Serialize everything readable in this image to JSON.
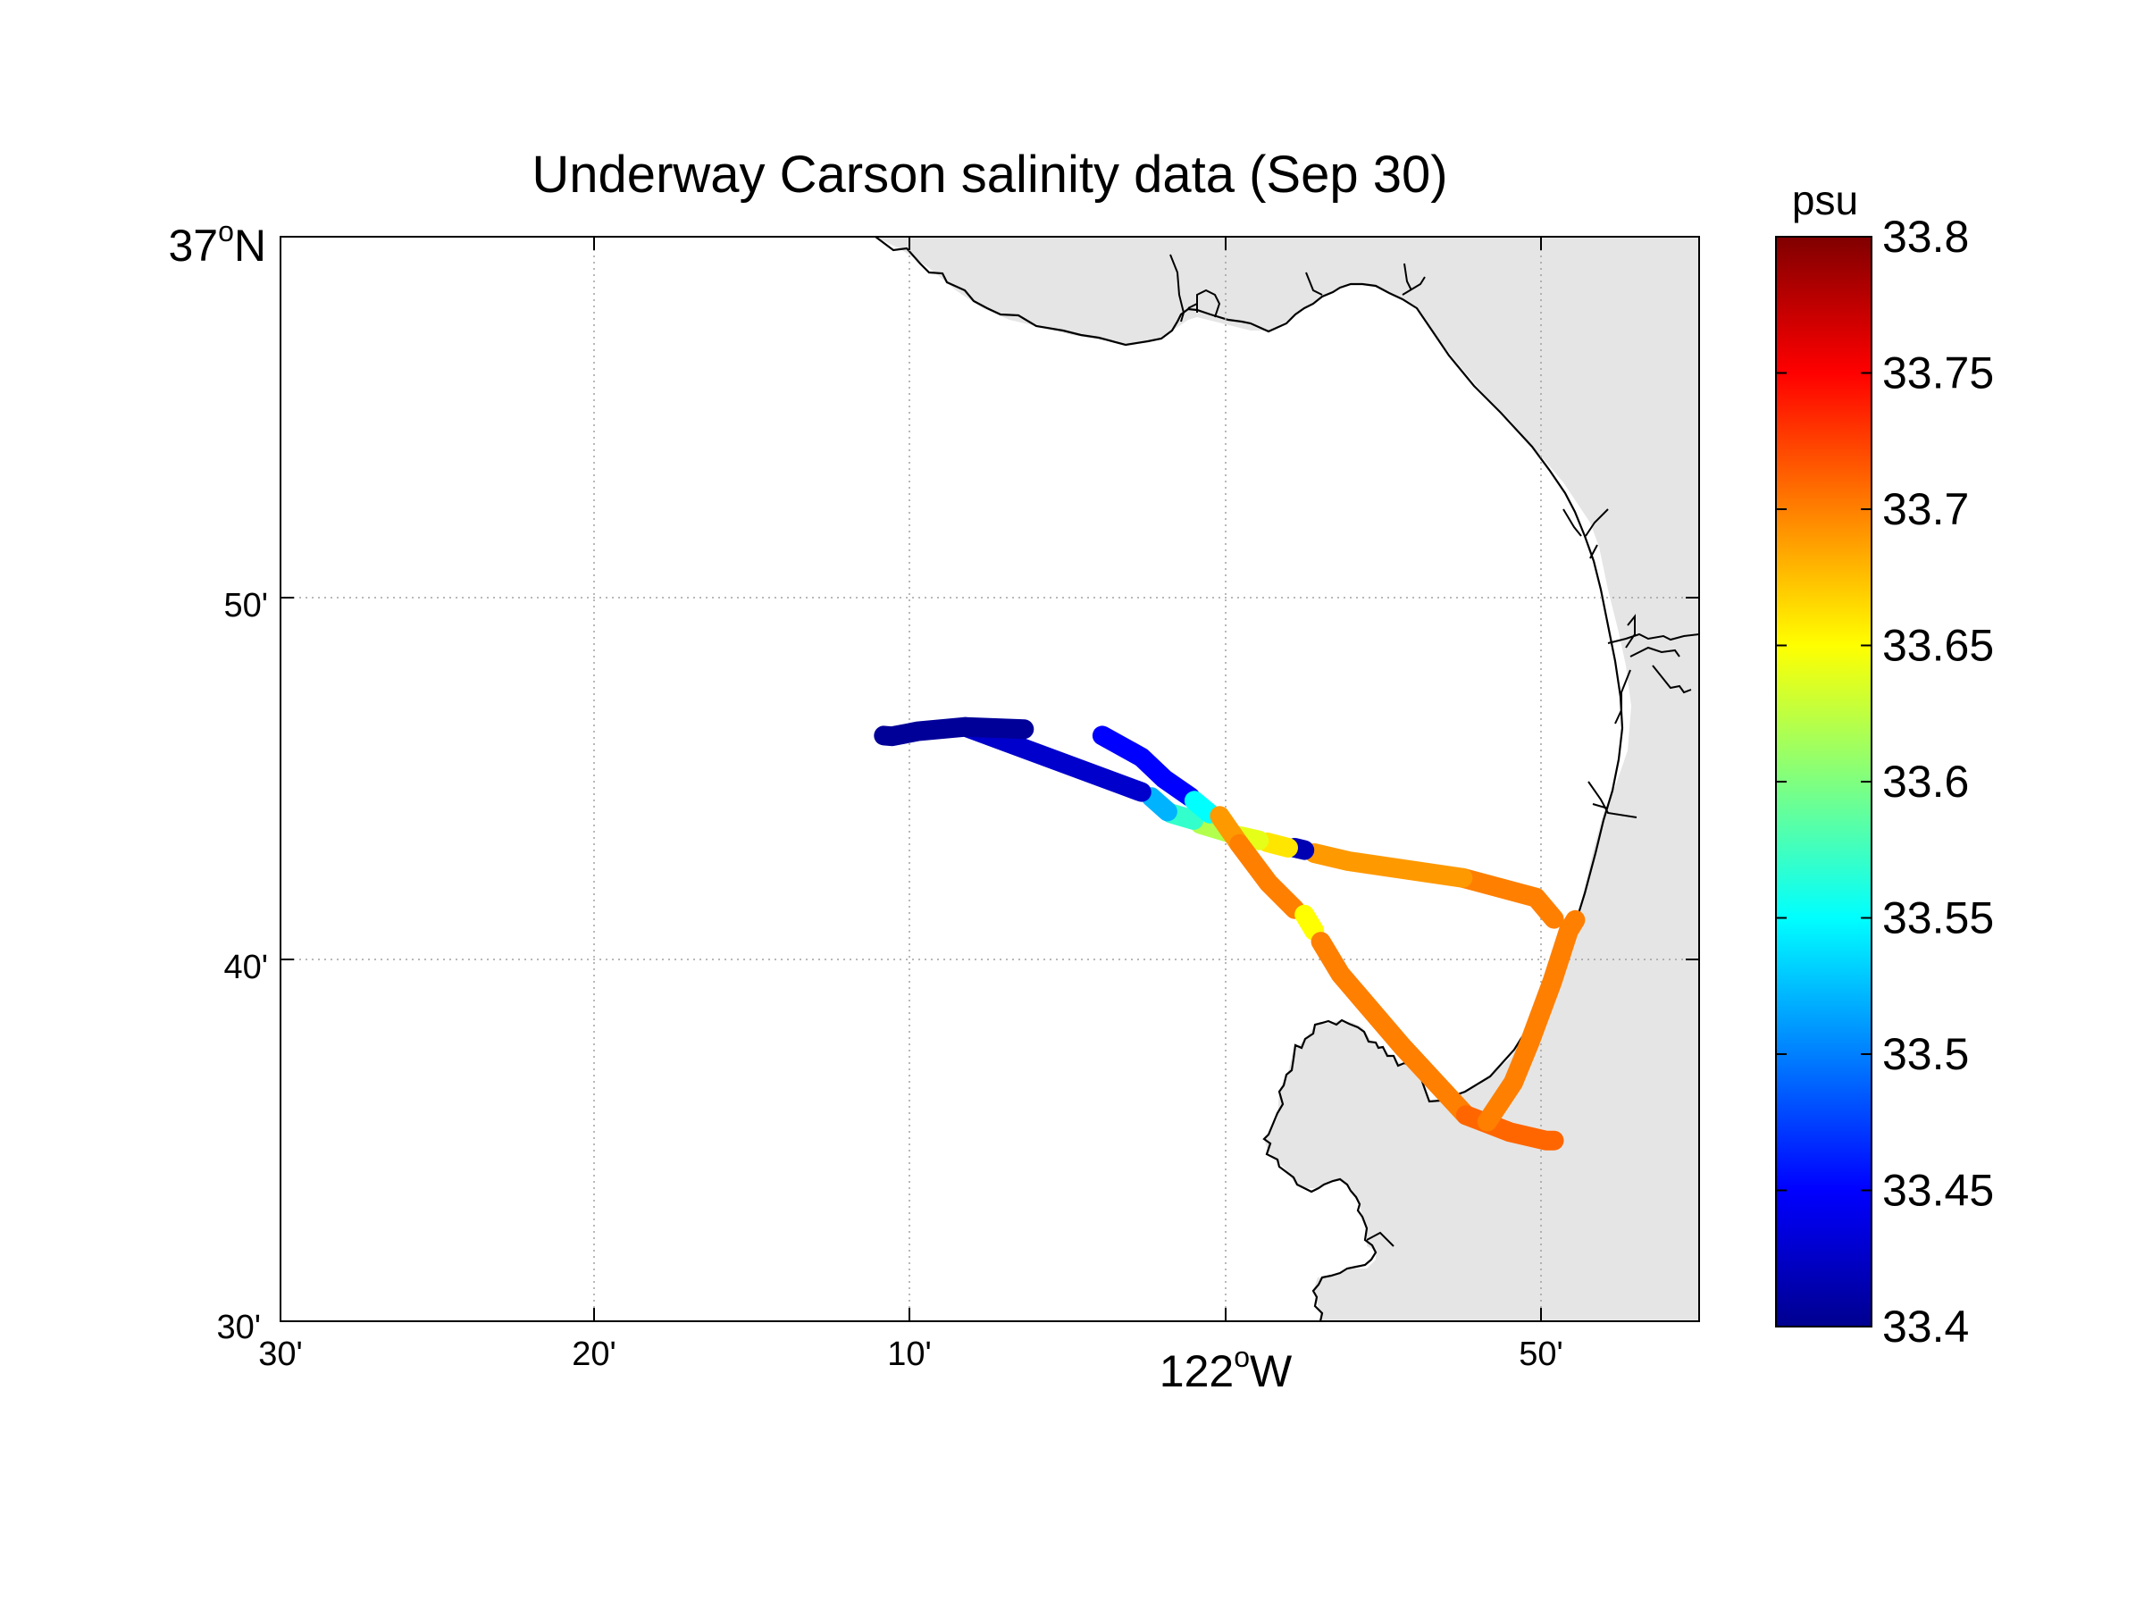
{
  "chart_data": {
    "type": "scatter",
    "title": "Underway Carson salinity data (Sep 30)",
    "map_projection": "lon-lat",
    "xlim": [
      -122.5,
      -121.775
    ],
    "ylim": [
      36.5,
      37.0
    ],
    "grid": true,
    "x_ticks": [
      {
        "value": -122.5,
        "label": "30'"
      },
      {
        "value": -122.3333,
        "label": "20'"
      },
      {
        "value": -122.1667,
        "label": "10'"
      },
      {
        "value": -122.0,
        "main": "122",
        "sup": "o",
        "suffix": "W"
      },
      {
        "value": -121.8333,
        "label": "50'"
      }
    ],
    "y_ticks": [
      {
        "value": 37.0,
        "main": "37",
        "sup": "o",
        "suffix": "N"
      },
      {
        "value": 36.8333,
        "label": "50'"
      },
      {
        "value": 36.6667,
        "label": "40'"
      },
      {
        "value": 36.5,
        "label": "30'"
      }
    ],
    "land_color": "#e5e5e5",
    "coast_color": "#000000",
    "colorbar": {
      "unit": "psu",
      "min": 33.4,
      "max": 33.8,
      "ticks": [
        "33.8",
        "33.75",
        "33.7",
        "33.65",
        "33.6",
        "33.55",
        "33.5",
        "33.45",
        "33.4"
      ],
      "colormap": "jet"
    },
    "track_segments": [
      {
        "points": [
          [
            -121.8492,
            36.6855
          ],
          [
            -121.8583,
            36.6953
          ],
          [
            -121.8958,
            36.7044
          ]
        ],
        "value": 33.7
      },
      {
        "points": [
          [
            -121.8958,
            36.7044
          ],
          [
            -121.9542,
            36.7121
          ],
          [
            -121.9717,
            36.7158
          ]
        ],
        "value": 33.69
      },
      {
        "points": [
          [
            -121.9767,
            36.7172
          ],
          [
            -121.9817,
            36.7183
          ]
        ],
        "value": 33.42
      },
      {
        "points": [
          [
            -121.985,
            36.7183
          ],
          [
            -121.9958,
            36.7208
          ]
        ],
        "value": 33.66
      },
      {
        "points": [
          [
            -122.0,
            36.7217
          ],
          [
            -122.0092,
            36.7236
          ]
        ],
        "value": 33.64
      },
      {
        "points": [
          [
            -122.0133,
            36.7247
          ],
          [
            -122.03,
            36.7292
          ]
        ],
        "value": 33.62
      },
      {
        "points": [
          [
            -122.0333,
            36.7311
          ],
          [
            -122.045,
            36.7342
          ]
        ],
        "value": 33.57
      },
      {
        "points": [
          [
            -122.0467,
            36.735
          ],
          [
            -122.055,
            36.7417
          ]
        ],
        "value": 33.52
      },
      {
        "points": [
          [
            -122.06,
            36.744
          ],
          [
            -122.15,
            36.774
          ]
        ],
        "value": 33.43
      },
      {
        "points": [
          [
            -122.12,
            36.773
          ],
          [
            -122.15,
            36.774
          ],
          [
            -122.1742,
            36.772
          ],
          [
            -122.1875,
            36.7697
          ],
          [
            -122.1917,
            36.77
          ]
        ],
        "value": 33.41
      },
      {
        "points": [
          [
            -122.08,
            36.77
          ],
          [
            -122.06,
            36.76
          ],
          [
            -122.0483,
            36.75
          ],
          [
            -122.035,
            36.7417
          ]
        ],
        "value": 33.45
      },
      {
        "points": [
          [
            -122.033,
            36.74
          ],
          [
            -122.025,
            36.734
          ]
        ],
        "value": 33.55
      },
      {
        "points": [
          [
            -122.02,
            36.733
          ],
          [
            -122.01,
            36.72
          ]
        ],
        "value": 33.69
      },
      {
        "points": [
          [
            -122.01,
            36.72
          ],
          [
            -121.995,
            36.702
          ],
          [
            -121.9817,
            36.69
          ]
        ],
        "value": 33.7
      },
      {
        "points": [
          [
            -121.9767,
            36.6875
          ],
          [
            -121.9717,
            36.68
          ]
        ],
        "value": 33.65
      },
      {
        "points": [
          [
            -121.9683,
            36.675
          ],
          [
            -121.9583,
            36.66
          ],
          [
            -121.9267,
            36.6267
          ],
          [
            -121.8942,
            36.595
          ]
        ],
        "value": 33.7
      },
      {
        "points": [
          [
            -121.8942,
            36.595
          ],
          [
            -121.8717,
            36.5872
          ],
          [
            -121.8533,
            36.5833
          ],
          [
            -121.8492,
            36.5833
          ]
        ],
        "value": 33.71
      },
      {
        "points": [
          [
            -121.8833,
            36.592
          ],
          [
            -121.87,
            36.61
          ],
          [
            -121.8617,
            36.6283
          ],
          [
            -121.85,
            36.6567
          ],
          [
            -121.8417,
            36.68
          ],
          [
            -121.8383,
            36.685
          ]
        ],
        "value": 33.7
      }
    ]
  }
}
